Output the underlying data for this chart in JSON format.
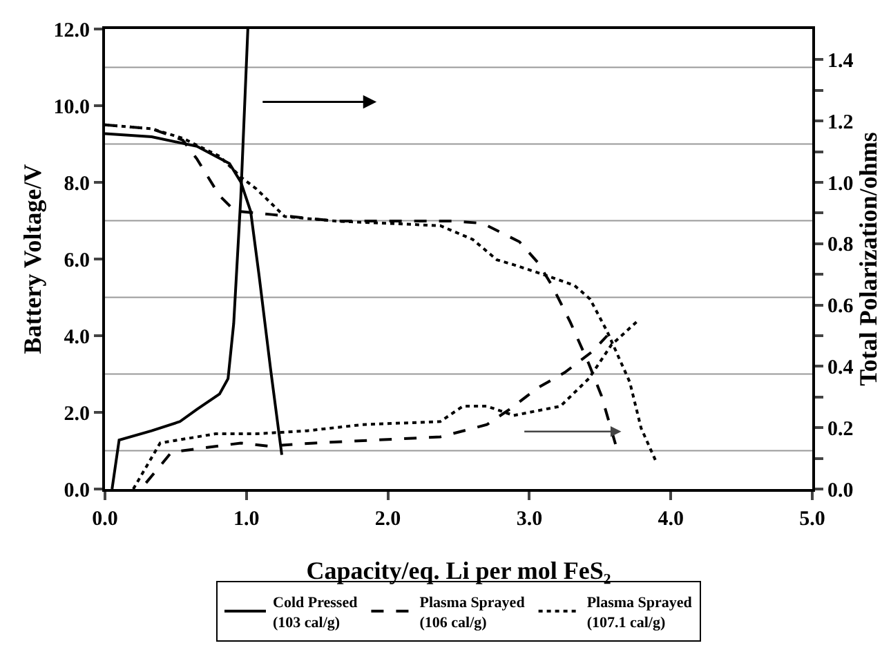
{
  "chart_data": {
    "type": "line",
    "xlabel": "Capacity/eq. Li per mol FeS₂",
    "ylabel": "Battery Voltage/V",
    "y2label": "Total Polarization/ohms",
    "xlim": [
      0,
      5
    ],
    "xticks": [
      {
        "value": 0,
        "label": "0.0"
      },
      {
        "value": 1,
        "label": "1.0"
      },
      {
        "value": 2,
        "label": "2.0"
      },
      {
        "value": 3,
        "label": "3.0"
      },
      {
        "value": 4,
        "label": "4.0"
      },
      {
        "value": 5,
        "label": "5.0"
      }
    ],
    "ylim": [
      0,
      12
    ],
    "yticks": [
      {
        "value": 0,
        "label": "0.0"
      },
      {
        "value": 2,
        "label": "2.0"
      },
      {
        "value": 4,
        "label": "4.0"
      },
      {
        "value": 6,
        "label": "6.0"
      },
      {
        "value": 8,
        "label": "8.0"
      },
      {
        "value": 10,
        "label": "10.0"
      },
      {
        "value": 12,
        "label": "12.0"
      }
    ],
    "y2lim": [
      0,
      1.5
    ],
    "y2ticks": [
      {
        "value": 0,
        "label": "0.0"
      },
      {
        "value": 0.1,
        "label": null
      },
      {
        "value": 0.2,
        "label": "0.2"
      },
      {
        "value": 0.3,
        "label": null
      },
      {
        "value": 0.4,
        "label": "0.4"
      },
      {
        "value": 0.5,
        "label": null
      },
      {
        "value": 0.6,
        "label": "0.6"
      },
      {
        "value": 0.7,
        "label": null
      },
      {
        "value": 0.8,
        "label": "0.8"
      },
      {
        "value": 0.9,
        "label": null
      },
      {
        "value": 1,
        "label": "1.0"
      },
      {
        "value": 1.1,
        "label": null
      },
      {
        "value": 1.2,
        "label": "1.2"
      },
      {
        "value": 1.3,
        "label": null
      },
      {
        "value": 1.4,
        "label": "1.4"
      }
    ],
    "grid": false,
    "legend": "bottom",
    "ref_lines": [
      {
        "axis": "y",
        "value": 1,
        "color": "#999999"
      },
      {
        "axis": "y",
        "value": 3,
        "color": "#999999"
      },
      {
        "axis": "y",
        "value": 5,
        "color": "#999999"
      },
      {
        "axis": "y",
        "value": 7,
        "color": "#999999"
      },
      {
        "axis": "y",
        "value": 9,
        "color": "#999999"
      },
      {
        "axis": "y",
        "value": 11,
        "color": "#999999"
      }
    ],
    "series": [
      {
        "name": "Cold Pressed\n(103 cal/g)",
        "color": "#000000",
        "line_style": "solid",
        "x": [
          0,
          0.33,
          0.65,
          0.88,
          0.96,
          1.03,
          1.09,
          1.17,
          1.25
        ],
        "values": [
          9.27,
          9.19,
          8.94,
          8.49,
          8.01,
          7.24,
          5.55,
          3.15,
          0.89
        ]
      },
      {
        "name": "Plasma Sprayed\n(106 cal/g)",
        "color": "#000000",
        "line_style": "dashed",
        "x": [
          0,
          0.33,
          0.55,
          0.65,
          0.81,
          0.92,
          1.18,
          1.63,
          2.47,
          2.67,
          2.93,
          3.06,
          3.16,
          3.29,
          3.42,
          3.51,
          3.61
        ],
        "values": [
          9.5,
          9.4,
          9.1,
          8.61,
          7.65,
          7.25,
          7.16,
          6.99,
          6.99,
          6.93,
          6.45,
          5.91,
          5.31,
          4.35,
          3.27,
          2.43,
          1.16
        ]
      },
      {
        "name": "Plasma Sprayed\n(107.1 cal/g)",
        "color": "#000000",
        "line_style": "dotted",
        "x": [
          0,
          0.33,
          0.55,
          0.81,
          0.96,
          1.07,
          1.17,
          1.27,
          1.63,
          2.37,
          2.6,
          2.77,
          2.89,
          3.12,
          3.32,
          3.43,
          3.55,
          3.71,
          3.79,
          3.9
        ],
        "values": [
          9.5,
          9.4,
          9.15,
          8.68,
          8.14,
          7.83,
          7.47,
          7.11,
          6.99,
          6.87,
          6.51,
          5.98,
          5.85,
          5.57,
          5.31,
          4.95,
          4.11,
          2.79,
          1.59,
          0.68
        ]
      },
      {
        "color": "#000000",
        "line_style": "solid",
        "axis": "y2",
        "x": [
          0.05,
          0.1,
          0.33,
          0.53,
          0.65,
          0.81,
          0.87,
          0.91,
          0.96,
          1.01
        ],
        "values": [
          0,
          0.16,
          0.19,
          0.22,
          0.26,
          0.31,
          0.36,
          0.54,
          0.95,
          1.5
        ]
      },
      {
        "color": "#000000",
        "line_style": "dashed",
        "axis": "y2",
        "x": [
          0.29,
          0.47,
          0.96,
          1.15,
          1.48,
          2.37,
          2.7,
          2.86,
          3.06,
          3.25,
          3.45,
          3.55
        ],
        "values": [
          0.02,
          0.12,
          0.15,
          0.14,
          0.15,
          0.17,
          0.21,
          0.26,
          0.33,
          0.38,
          0.45,
          0.5
        ]
      },
      {
        "color": "#000000",
        "line_style": "dotted",
        "axis": "y2",
        "x": [
          0.2,
          0.39,
          0.78,
          1.07,
          1.43,
          1.82,
          2.37,
          2.53,
          2.7,
          2.89,
          3.22,
          3.42,
          3.58,
          3.77
        ],
        "values": [
          0,
          0.15,
          0.18,
          0.18,
          0.19,
          0.21,
          0.22,
          0.27,
          0.27,
          0.24,
          0.27,
          0.36,
          0.47,
          0.55
        ]
      }
    ]
  }
}
